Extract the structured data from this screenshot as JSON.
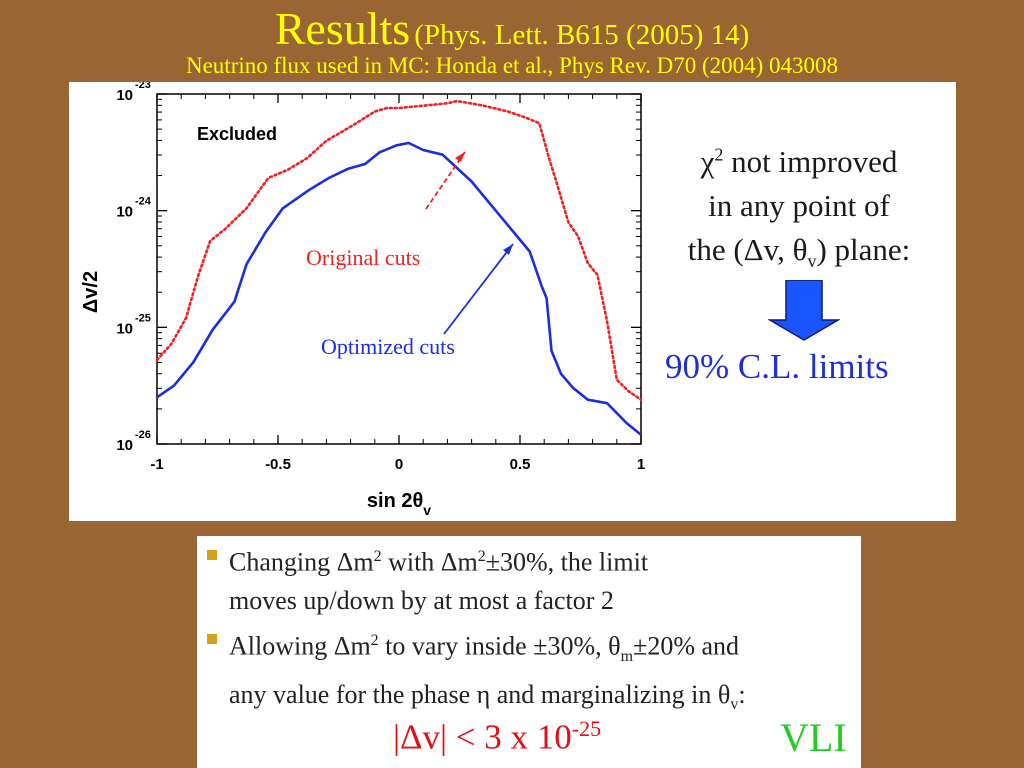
{
  "header": {
    "title": "Results",
    "title_ref": "(Phys. Lett. B615 (2005) 14)",
    "subtitle": "Neutrino flux used in MC: Honda et al., Phys Rev. D70 (2004) 043008"
  },
  "chart_data": {
    "type": "line",
    "title": "",
    "xlabel": "sin 2θ_v",
    "ylabel": "Δv/2",
    "xlim": [
      -1,
      1
    ],
    "ylim_log10": [
      -26,
      -23
    ],
    "log_y": true,
    "x_tick_labels": [
      "-1",
      "-0.5",
      "0",
      "0.5",
      "1"
    ],
    "x_ticks": [
      -1,
      -0.5,
      0,
      0.5,
      1
    ],
    "y_ticks_exp": [
      -26,
      -25,
      -24,
      -23
    ],
    "y_tick_base": "10",
    "region_label": "Excluded",
    "series": [
      {
        "name": "Original cuts",
        "color": "#ee2222",
        "style": "dotted",
        "x": [
          -1.0,
          -0.94,
          -0.88,
          -0.83,
          -0.78,
          -0.72,
          -0.63,
          -0.54,
          -0.46,
          -0.38,
          -0.3,
          -0.2,
          -0.1,
          -0.05,
          0.0,
          0.1,
          0.2,
          0.24,
          0.35,
          0.45,
          0.52,
          0.58,
          0.62,
          0.65,
          0.7,
          0.74,
          0.78,
          0.82,
          0.86,
          0.9,
          0.95,
          1.0
        ],
        "y_log10": [
          -25.28,
          -25.14,
          -24.92,
          -24.56,
          -24.26,
          -24.16,
          -23.98,
          -23.72,
          -23.65,
          -23.55,
          -23.4,
          -23.28,
          -23.15,
          -23.12,
          -23.12,
          -23.1,
          -23.08,
          -23.06,
          -23.1,
          -23.15,
          -23.2,
          -23.25,
          -23.55,
          -23.75,
          -24.1,
          -24.22,
          -24.45,
          -24.55,
          -24.95,
          -25.45,
          -25.55,
          -25.62
        ]
      },
      {
        "name": "Optimized cuts",
        "color": "#1a2ee0",
        "style": "solid",
        "x": [
          -1.0,
          -0.93,
          -0.85,
          -0.77,
          -0.68,
          -0.63,
          -0.55,
          -0.48,
          -0.37,
          -0.29,
          -0.21,
          -0.14,
          -0.08,
          -0.01,
          0.04,
          0.1,
          0.18,
          0.3,
          0.4,
          0.48,
          0.54,
          0.59,
          0.61,
          0.63,
          0.67,
          0.72,
          0.78,
          0.86,
          0.94,
          1.0
        ],
        "y_log10": [
          -25.6,
          -25.5,
          -25.3,
          -25.02,
          -24.78,
          -24.46,
          -24.18,
          -23.98,
          -23.82,
          -23.72,
          -23.64,
          -23.6,
          -23.5,
          -23.44,
          -23.42,
          -23.48,
          -23.52,
          -23.75,
          -24.0,
          -24.2,
          -24.35,
          -24.65,
          -24.75,
          -25.2,
          -25.4,
          -25.52,
          -25.62,
          -25.65,
          -25.82,
          -25.92
        ]
      }
    ],
    "annotations": [
      "Original cuts",
      "Optimized cuts"
    ]
  },
  "notes": {
    "line1": "χ² not improved",
    "line2": "in any point of",
    "line3": "the (Δv, θ_v) plane:",
    "limits": "90% C.L. limits",
    "arrow_color": "#1a55ff"
  },
  "bullets": [
    {
      "line1": "Changing Δm² with Δm²±30%, the limit",
      "line2": "moves up/down by at most a factor 2"
    },
    {
      "line1": "Allowing Δm² to vary inside ±30%, θ_m±20% and",
      "line2": "any value for the phase η and marginalizing in θ_v:"
    }
  ],
  "formula": {
    "main": "|Δv| < 3 x 10",
    "exponent": "-25"
  },
  "vli_label": "VLI"
}
